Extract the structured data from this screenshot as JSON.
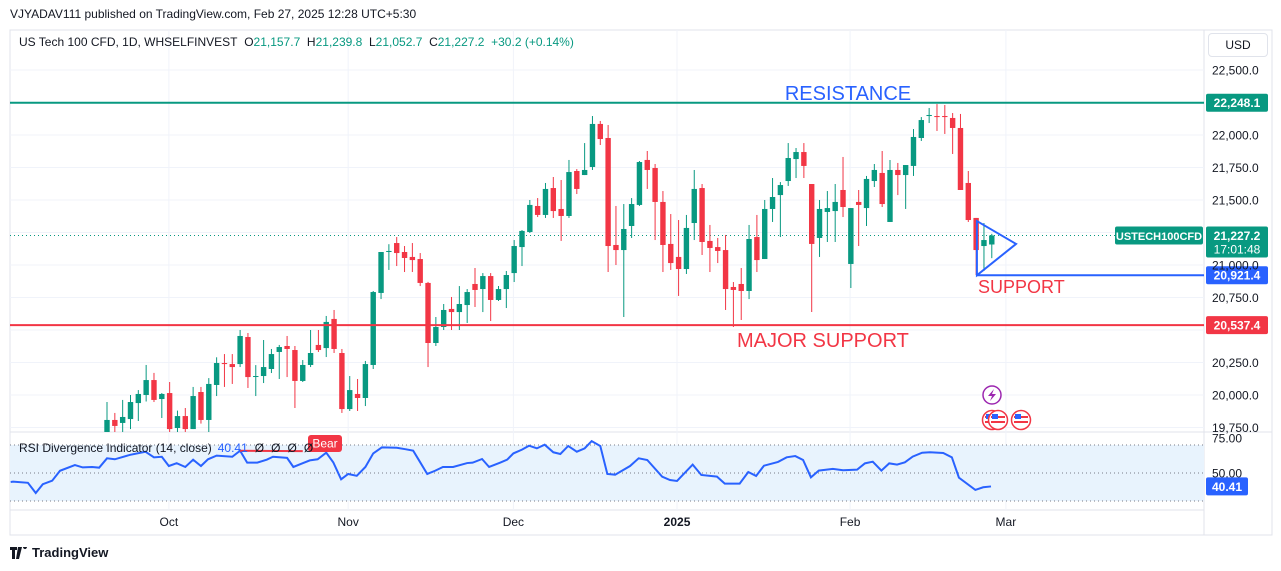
{
  "header": {
    "published": "VJYADAV111 published on TradingView.com, Feb 27, 2025 12:28 UTC+5:30"
  },
  "legend": {
    "symbol": "US Tech 100 CFD, 1D, WHSELFINVEST",
    "o_label": "O",
    "o": "21,157.7",
    "h_label": "H",
    "h": "21,239.8",
    "l_label": "L",
    "l": "21,052.7",
    "c_label": "C",
    "c": "21,227.2",
    "change": "+30.2 (+0.14%)"
  },
  "currency": "USD",
  "price_axis": {
    "labels": [
      "22,500.0",
      "22,000.0",
      "21,750.0",
      "21,500.0",
      "21,000.0",
      "20,750.0",
      "20,250.0",
      "20,000.0",
      "19,750.0"
    ],
    "values": [
      22500,
      22000,
      21750,
      21500,
      21000,
      20750,
      20250,
      20000,
      19750
    ]
  },
  "current_price": {
    "symbol_label": "USTECH100CFD",
    "price": "21,227.2",
    "countdown": "17:01:48",
    "value": 21227.2
  },
  "levels": [
    {
      "name": "resistance",
      "label": "RESISTANCE",
      "value": 22248.1,
      "price_label": "22,248.1",
      "color": "#089981",
      "text_color": "#2962ff"
    },
    {
      "name": "support",
      "label": "SUPPORT",
      "value": 20921.4,
      "price_label": "20,921.4",
      "color": "#2962ff",
      "text_color": "#f23645"
    },
    {
      "name": "major-support",
      "label": "MAJOR SUPPORT",
      "value": 20537.4,
      "price_label": "20,537.4",
      "color": "#f23645",
      "text_color": "#f23645"
    }
  ],
  "triangle": [
    [
      111.1,
      21338
    ],
    [
      116.1,
      21162
    ],
    [
      111.1,
      20921
    ]
  ],
  "time_axis": [
    {
      "label": "Oct",
      "bar": 7.9,
      "bold": false
    },
    {
      "label": "Nov",
      "bar": 30.8,
      "bold": false
    },
    {
      "label": "Dec",
      "bar": 51.9,
      "bold": false
    },
    {
      "label": "2025",
      "bar": 72.8,
      "bold": true
    },
    {
      "label": "Feb",
      "bar": 94.9,
      "bold": false
    },
    {
      "label": "Mar",
      "bar": 114.8,
      "bold": false
    }
  ],
  "rsi": {
    "title": "RSI Divergence Indicator (14, close)",
    "value": "40.41",
    "extra": [
      "Ø",
      "Ø",
      "Ø",
      "Ø"
    ],
    "bear_label": "Bear",
    "axis_labels": [
      "75.00",
      "50.00"
    ],
    "axis_values": [
      75,
      50
    ],
    "bands": [
      70,
      50,
      30
    ],
    "bear_line": [
      [
        17,
        65.9
      ],
      [
        25,
        65.6
      ]
    ],
    "points": [
      [
        -12.3,
        43.6
      ],
      [
        -12,
        43.8
      ],
      [
        -10.1,
        43
      ],
      [
        -9.1,
        35.7
      ],
      [
        -8.2,
        42
      ],
      [
        -7,
        44.5
      ],
      [
        -6,
        51.6
      ],
      [
        -4.1,
        55.7
      ],
      [
        -3.1,
        54
      ],
      [
        -1.9,
        54.3
      ],
      [
        -1,
        53.8
      ],
      [
        0,
        60.5
      ],
      [
        1,
        59.8
      ],
      [
        2.9,
        62.9
      ],
      [
        4.9,
        65.2
      ],
      [
        6,
        61.2
      ],
      [
        7,
        61.6
      ],
      [
        7.9,
        55
      ],
      [
        8.9,
        57
      ],
      [
        10,
        54.3
      ],
      [
        11,
        59.5
      ],
      [
        12,
        55
      ],
      [
        12.9,
        59.8
      ],
      [
        14,
        62.4
      ],
      [
        16,
        61.6
      ],
      [
        17,
        65.9
      ],
      [
        17.9,
        57.4
      ],
      [
        19.2,
        57.4
      ],
      [
        20.4,
        59.5
      ],
      [
        21.2,
        61.6
      ],
      [
        23,
        60.8
      ],
      [
        23.8,
        54.3
      ],
      [
        25,
        57
      ],
      [
        25.9,
        59
      ],
      [
        26.9,
        59.8
      ],
      [
        28,
        64.5
      ],
      [
        28.9,
        57.6
      ],
      [
        29.9,
        45.5
      ],
      [
        30.8,
        49.3
      ],
      [
        31.9,
        48
      ],
      [
        33,
        54.3
      ],
      [
        34,
        64
      ],
      [
        35.1,
        68.3
      ],
      [
        37,
        68
      ],
      [
        38.1,
        67
      ],
      [
        39.1,
        66
      ],
      [
        39.8,
        59.5
      ],
      [
        40.9,
        49.3
      ],
      [
        41.9,
        51.6
      ],
      [
        42.9,
        54.3
      ],
      [
        44.2,
        54.3
      ],
      [
        46,
        57.1
      ],
      [
        46.7,
        57.4
      ],
      [
        47.9,
        60
      ],
      [
        48.8,
        54.3
      ],
      [
        50.2,
        57.4
      ],
      [
        51.1,
        59.5
      ],
      [
        51.9,
        64
      ],
      [
        53,
        66.7
      ],
      [
        53.9,
        69.5
      ],
      [
        54.9,
        67.6
      ],
      [
        55.9,
        70.2
      ],
      [
        57,
        64.8
      ],
      [
        57.9,
        63.6
      ],
      [
        58.9,
        69.3
      ],
      [
        60,
        65.2
      ],
      [
        61,
        67.6
      ],
      [
        61.9,
        72.8
      ],
      [
        63,
        69.3
      ],
      [
        63.9,
        49.3
      ],
      [
        64.9,
        48.8
      ],
      [
        66.8,
        55
      ],
      [
        67.9,
        60.5
      ],
      [
        69,
        59.3
      ],
      [
        70.9,
        47.4
      ],
      [
        71.9,
        45
      ],
      [
        72.8,
        44.3
      ],
      [
        74.8,
        56
      ],
      [
        75.9,
        48.6
      ],
      [
        77.9,
        47.4
      ],
      [
        78.9,
        42.4
      ],
      [
        80.8,
        42.4
      ],
      [
        81.9,
        50.7
      ],
      [
        82.9,
        47.9
      ],
      [
        83.9,
        55.2
      ],
      [
        85.7,
        57.9
      ],
      [
        86.8,
        61.2
      ],
      [
        87.9,
        62.1
      ],
      [
        88.9,
        59.3
      ],
      [
        89.9,
        46.9
      ],
      [
        90.9,
        51.7
      ],
      [
        92.7,
        52.9
      ],
      [
        94,
        52
      ],
      [
        95.8,
        52.4
      ],
      [
        96.8,
        56.9
      ],
      [
        97.8,
        58.1
      ],
      [
        98.9,
        51.7
      ],
      [
        99.9,
        56.9
      ],
      [
        100.9,
        56
      ],
      [
        101.9,
        57.6
      ],
      [
        102.9,
        61.7
      ],
      [
        104.1,
        64.5
      ],
      [
        105.1,
        64.8
      ],
      [
        106.8,
        64.3
      ],
      [
        107.9,
        61.2
      ],
      [
        108.8,
        46.7
      ],
      [
        110.9,
        37.9
      ],
      [
        111.9,
        39.8
      ],
      [
        112.9,
        40.4
      ]
    ]
  },
  "events": [
    "lightning-icon",
    "us-flag-icon",
    "us-flag-icon",
    "us-flag-icon"
  ],
  "branding": {
    "logo_text": "TradingView"
  },
  "colors": {
    "up": "#089981",
    "down": "#f23645",
    "rsi": "#2962ff",
    "rsi_bg": "#e8f3fd"
  },
  "chart_data": {
    "type": "candlestick",
    "title": "US Tech 100 CFD, 1D, WHSELFINVEST",
    "ylim": [
      19700,
      22600
    ],
    "ohlc": [
      [
        19708,
        19946,
        19700,
        19808
      ],
      [
        19808,
        19862,
        19708,
        19762
      ],
      [
        19785,
        19962,
        19715,
        19831
      ],
      [
        19815,
        20000,
        19738,
        19946
      ],
      [
        19938,
        20038,
        19800,
        20008
      ],
      [
        20000,
        20231,
        19950,
        20115
      ],
      [
        20115,
        20170,
        19946,
        19962
      ],
      [
        19969,
        20015,
        19823,
        20008
      ],
      [
        20015,
        20100,
        19700,
        19738
      ],
      [
        19746,
        19880,
        19708,
        19838
      ],
      [
        19838,
        19900,
        19708,
        19738
      ],
      [
        19738,
        20062,
        19738,
        19992
      ],
      [
        20023,
        20062,
        19780,
        19808
      ],
      [
        19808,
        20130,
        19708,
        20085
      ],
      [
        20077,
        20290,
        19992,
        20246
      ],
      [
        20246,
        20315,
        20062,
        20238
      ],
      [
        20238,
        20315,
        20085,
        20215
      ],
      [
        20238,
        20500,
        20215,
        20454
      ],
      [
        20446,
        20477,
        20054,
        20138
      ],
      [
        20146,
        20230,
        19992,
        20146
      ],
      [
        20146,
        20423,
        20092,
        20215
      ],
      [
        20200,
        20354,
        20169,
        20315
      ],
      [
        20331,
        20385,
        20123,
        20369
      ],
      [
        20377,
        20454,
        20138,
        20354
      ],
      [
        20346,
        20377,
        19900,
        20108
      ],
      [
        20108,
        20269,
        20100,
        20231
      ],
      [
        20231,
        20500,
        20215,
        20323
      ],
      [
        20385,
        20500,
        20331,
        20346
      ],
      [
        20361,
        20608,
        20292,
        20562
      ],
      [
        20585,
        20654,
        20323,
        20354
      ],
      [
        20323,
        20354,
        19862,
        19892
      ],
      [
        19892,
        20146,
        19877,
        20038
      ],
      [
        20008,
        20123,
        19877,
        19977
      ],
      [
        19977,
        20262,
        19915,
        20238
      ],
      [
        20231,
        20800,
        20200,
        20792
      ],
      [
        20785,
        21100,
        20738,
        21100
      ],
      [
        21100,
        21160,
        20962,
        21108
      ],
      [
        21169,
        21215,
        20992,
        21092
      ],
      [
        21100,
        21146,
        20946,
        21054
      ],
      [
        21062,
        21169,
        20946,
        21038
      ],
      [
        21046,
        21092,
        20838,
        20862
      ],
      [
        20862,
        20870,
        20215,
        20400
      ],
      [
        20400,
        20600,
        20377,
        20523
      ],
      [
        20523,
        20700,
        20500,
        20654
      ],
      [
        20662,
        20754,
        20500,
        20638
      ],
      [
        20638,
        20838,
        20500,
        20700
      ],
      [
        20692,
        20815,
        20554,
        20792
      ],
      [
        20854,
        20977,
        20677,
        20808
      ],
      [
        20815,
        20938,
        20638,
        20915
      ],
      [
        20915,
        20938,
        20569,
        20731
      ],
      [
        20731,
        20838,
        20723,
        20815
      ],
      [
        20815,
        20954,
        20669,
        20923
      ],
      [
        20938,
        21192,
        20869,
        21146
      ],
      [
        21138,
        21269,
        20992,
        21262
      ],
      [
        21254,
        21500,
        21246,
        21462
      ],
      [
        21454,
        21515,
        21369,
        21385
      ],
      [
        21385,
        21631,
        21362,
        21585
      ],
      [
        21592,
        21677,
        21362,
        21415
      ],
      [
        21431,
        21654,
        21185,
        21377
      ],
      [
        21377,
        21808,
        21362,
        21715
      ],
      [
        21723,
        21738,
        21546,
        21585
      ],
      [
        21692,
        21938,
        21692,
        21731
      ],
      [
        21754,
        22146,
        21731,
        22085
      ],
      [
        22085,
        22108,
        21923,
        21969
      ],
      [
        21977,
        22077,
        20946,
        21146
      ],
      [
        21154,
        21454,
        21000,
        21115
      ],
      [
        21115,
        21469,
        20600,
        21277
      ],
      [
        21300,
        21515,
        21208,
        21469
      ],
      [
        21462,
        21800,
        21454,
        21792
      ],
      [
        21808,
        21877,
        21585,
        21731
      ],
      [
        21746,
        21777,
        21192,
        21485
      ],
      [
        21485,
        21569,
        20946,
        21154
      ],
      [
        21162,
        21392,
        20962,
        21015
      ],
      [
        21062,
        21346,
        20762,
        20969
      ],
      [
        20969,
        21385,
        20931,
        21285
      ],
      [
        21323,
        21731,
        21192,
        21585
      ],
      [
        21592,
        21623,
        21077,
        21177
      ],
      [
        21185,
        21308,
        20946,
        21131
      ],
      [
        21138,
        21208,
        21015,
        21108
      ],
      [
        21115,
        21231,
        20654,
        20815
      ],
      [
        20831,
        20869,
        20523,
        20808
      ],
      [
        20854,
        20977,
        20577,
        20800
      ],
      [
        20800,
        21308,
        20738,
        21200
      ],
      [
        21215,
        21385,
        20946,
        21038
      ],
      [
        21046,
        21500,
        21046,
        21431
      ],
      [
        21431,
        21669,
        21331,
        21523
      ],
      [
        21538,
        21638,
        21215,
        21615
      ],
      [
        21646,
        21938,
        21608,
        21823
      ],
      [
        21815,
        21900,
        21669,
        21869
      ],
      [
        21869,
        21938,
        21669,
        21762
      ],
      [
        21623,
        21623,
        20638,
        21162
      ],
      [
        21208,
        21500,
        21062,
        21431
      ],
      [
        21408,
        21569,
        21177,
        21438
      ],
      [
        21415,
        21623,
        21177,
        21485
      ],
      [
        21577,
        21831,
        21369,
        21446
      ],
      [
        21008,
        21438,
        20823,
        21438
      ],
      [
        21485,
        21577,
        21146,
        21462
      ],
      [
        21438,
        21685,
        21300,
        21662
      ],
      [
        21646,
        21777,
        21600,
        21731
      ],
      [
        21708,
        21877,
        21446,
        21469
      ],
      [
        21331,
        21808,
        21331,
        21731
      ],
      [
        21731,
        21785,
        21538,
        21692
      ],
      [
        21692,
        21769,
        21431,
        21769
      ],
      [
        21762,
        22046,
        21685,
        21985
      ],
      [
        21977,
        22138,
        21954,
        22115
      ],
      [
        22146,
        22208,
        22092,
        22154
      ],
      [
        22146,
        22238,
        22031,
        22138
      ],
      [
        22146,
        22231,
        22008,
        22138
      ],
      [
        22131,
        22169,
        21854,
        22054
      ],
      [
        22054,
        22162,
        21577,
        21577
      ],
      [
        21631,
        21723,
        21331,
        21346
      ],
      [
        21362,
        21362,
        20923,
        21115
      ],
      [
        21146,
        21323,
        20954,
        21192
      ],
      [
        21157.7,
        21239.8,
        21052.7,
        21227.2
      ]
    ]
  }
}
